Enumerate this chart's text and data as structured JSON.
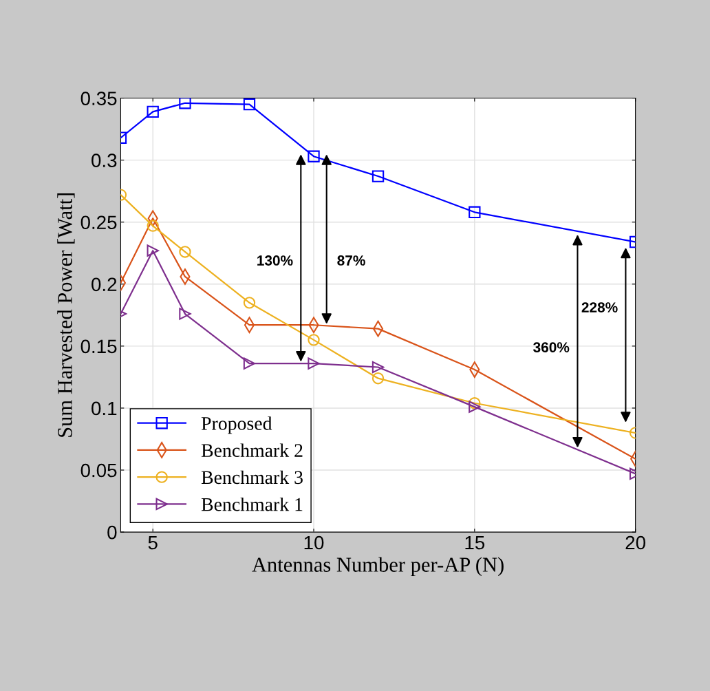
{
  "chart_data": {
    "type": "line",
    "xlabel": "Antennas Number per-AP (N)",
    "ylabel": "Sum Harvested Power [Watt]",
    "x": [
      4,
      5,
      6,
      8,
      10,
      12,
      15,
      20
    ],
    "series": [
      {
        "name": "Proposed",
        "color": "#0000ff",
        "marker": "square",
        "values": [
          0.318,
          0.339,
          0.346,
          0.345,
          0.303,
          0.287,
          0.258,
          0.234
        ]
      },
      {
        "name": "Benchmark 2",
        "color": "#d95319",
        "marker": "diamond",
        "values": [
          0.201,
          0.253,
          0.206,
          0.167,
          0.167,
          0.164,
          0.131,
          0.059
        ]
      },
      {
        "name": "Benchmark 3",
        "color": "#edb120",
        "marker": "circle",
        "values": [
          0.272,
          0.247,
          0.226,
          0.185,
          0.155,
          0.124,
          0.104,
          0.08
        ]
      },
      {
        "name": "Benchmark 1",
        "color": "#7e2f8e",
        "marker": "triangle",
        "values": [
          0.176,
          0.227,
          0.176,
          0.136,
          0.136,
          0.133,
          0.101,
          0.047
        ]
      }
    ],
    "xlim": [
      4,
      20
    ],
    "xticks": [
      5,
      10,
      15,
      20
    ],
    "ylim": [
      0,
      0.35
    ],
    "yticks": [
      0,
      0.05,
      0.1,
      0.15,
      0.2,
      0.25,
      0.3,
      0.35
    ],
    "grid": true,
    "legend": "bottom left",
    "line_style": "solid",
    "annotations": [
      "130%",
      "87%",
      "360%",
      "228%"
    ]
  }
}
